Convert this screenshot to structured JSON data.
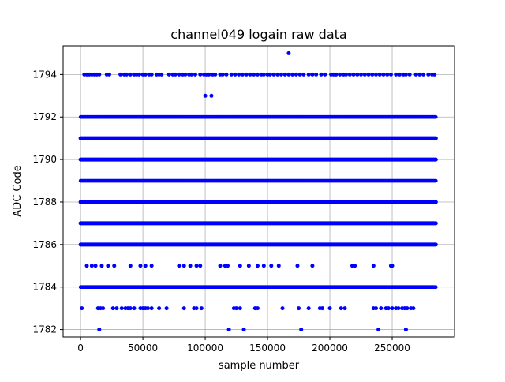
{
  "chart_data": {
    "type": "scatter",
    "title": "channel049 logain raw data",
    "xlabel": "sample number",
    "ylabel": "ADC Code",
    "xlim": [
      -14000,
      300000
    ],
    "ylim": [
      1781.65,
      1795.35
    ],
    "x_ticks": [
      0,
      50000,
      100000,
      150000,
      200000,
      250000
    ],
    "y_ticks": [
      1782,
      1784,
      1786,
      1788,
      1790,
      1792,
      1794
    ],
    "grid": true,
    "marker_color": "#0000ff",
    "x_extent": [
      0,
      285000
    ],
    "series": [
      {
        "dense_levels": [
          1791,
          1790,
          1788,
          1787,
          1786
        ],
        "frequent_levels": [
          1792,
          1789,
          1784
        ],
        "sparse_points": [
          {
            "level": 1794,
            "x": [
              3000,
              5000,
              7000,
              9000,
              11000,
              13000,
              15000,
              21000,
              23000,
              32000,
              35000,
              37000,
              40000,
              43000,
              45000,
              47000,
              50000,
              52000,
              55000,
              57000,
              61000,
              63000,
              65000,
              71000,
              74000,
              76000,
              79000,
              82000,
              84000,
              87000,
              89000,
              92000,
              96000,
              99000,
              101000,
              103000,
              106000,
              108000,
              112000,
              114000,
              117000,
              121000,
              124000,
              127000,
              130000,
              133000,
              136000,
              139000,
              142000,
              145000,
              147000,
              150000,
              152000,
              155000,
              158000,
              161000,
              164000,
              167000,
              170000,
              173000,
              176000,
              179000,
              183000,
              186000,
              189000,
              193000,
              196000,
              201000,
              203000,
              205000,
              208000,
              211000,
              213000,
              216000,
              219000,
              222000,
              225000,
              228000,
              231000,
              234000,
              237000,
              240000,
              243000,
              246000,
              249000,
              253000,
              256000,
              259000,
              261000,
              264000,
              269000,
              272000,
              275000,
              279000,
              282000,
              284000
            ]
          },
          {
            "level": 1795,
            "x": [
              167000
            ]
          },
          {
            "level": 1793,
            "x": [
              100000,
              105000
            ]
          },
          {
            "level": 1785,
            "x": [
              5000,
              9000,
              12000,
              17000,
              22000,
              27000,
              40000,
              48000,
              52000,
              57000,
              79000,
              83000,
              88000,
              93000,
              96000,
              112000,
              116000,
              118000,
              128000,
              135000,
              142000,
              147000,
              153000,
              159000,
              174000,
              186000,
              218000,
              220000,
              235000,
              249000,
              250000
            ]
          },
          {
            "level": 1783,
            "x": [
              1000,
              14000,
              16000,
              18000,
              26000,
              29000,
              33000,
              36000,
              38000,
              40000,
              43000,
              48000,
              50000,
              52000,
              54000,
              57000,
              63000,
              69000,
              83000,
              91000,
              93000,
              97000,
              123000,
              125000,
              128000,
              140000,
              142000,
              162000,
              175000,
              183000,
              192000,
              194000,
              200000,
              209000,
              212000,
              235000,
              237000,
              241000,
              245000,
              247000,
              250000,
              253000,
              255000,
              258000,
              260000,
              262000,
              265000,
              267000
            ]
          },
          {
            "level": 1782,
            "x": [
              15000,
              119000,
              131000,
              177000,
              239000,
              261000
            ]
          }
        ]
      }
    ]
  }
}
